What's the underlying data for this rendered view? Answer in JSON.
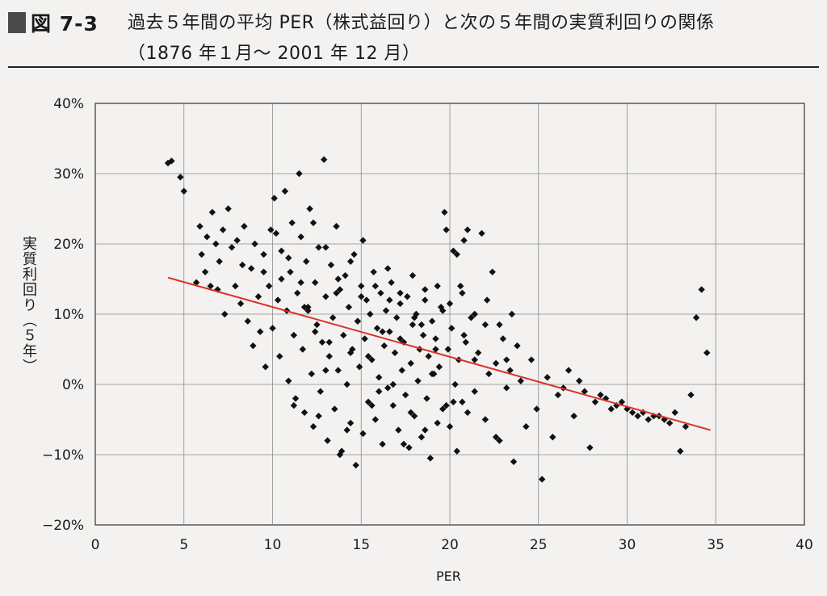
{
  "header": {
    "figure_label": "図 7-3",
    "title": "過去５年間の平均 PER（株式益回り）と次の５年間の実質利回りの関係",
    "subtitle": "（1876 年１月～ 2001 年 12 月）"
  },
  "colors": {
    "points": "#111111",
    "trend_line": "#d8322a",
    "grid": "#8a8a8a",
    "background": "#f4f2f0"
  },
  "chart_data": {
    "type": "scatter",
    "xlabel": "PER",
    "ylabel": "実質利回り（５年）",
    "xlim": [
      0,
      40
    ],
    "ylim": [
      -20,
      40
    ],
    "x_ticks": [
      0,
      5,
      10,
      15,
      20,
      25,
      30,
      35,
      40
    ],
    "y_ticks": [
      40,
      30,
      20,
      10,
      0,
      -10,
      -20
    ],
    "y_tick_labels": [
      "40%",
      "30%",
      "20%",
      "10%",
      "0%",
      "−10%",
      "−20%"
    ],
    "grid": true,
    "trend_line": {
      "x": [
        4.1,
        34.7
      ],
      "y": [
        15.2,
        -6.5
      ]
    },
    "points_x": [
      4.1,
      4.3,
      4.8,
      5.0,
      5.7,
      5.9,
      6.0,
      6.2,
      6.3,
      6.5,
      6.6,
      6.8,
      6.9,
      7.0,
      7.2,
      7.3,
      7.5,
      7.7,
      7.9,
      8.0,
      8.2,
      8.3,
      8.4,
      8.6,
      8.8,
      8.9,
      9.0,
      9.2,
      9.3,
      9.5,
      9.6,
      9.8,
      9.9,
      10.0,
      10.1,
      10.3,
      10.4,
      10.5,
      10.7,
      10.8,
      10.9,
      11.0,
      11.1,
      11.2,
      11.3,
      11.4,
      11.5,
      11.6,
      11.7,
      11.8,
      11.9,
      12.0,
      12.1,
      12.2,
      12.3,
      12.4,
      12.5,
      12.6,
      12.7,
      12.8,
      12.9,
      13.0,
      13.1,
      13.2,
      13.3,
      13.4,
      13.5,
      13.6,
      13.7,
      13.8,
      13.9,
      14.0,
      14.1,
      14.2,
      14.3,
      14.4,
      14.5,
      14.6,
      14.7,
      14.8,
      14.9,
      15.0,
      15.1,
      15.2,
      15.3,
      15.4,
      15.5,
      15.6,
      15.7,
      15.8,
      15.9,
      16.0,
      16.1,
      16.2,
      16.3,
      16.4,
      16.5,
      16.6,
      16.7,
      16.8,
      16.9,
      17.0,
      17.1,
      17.2,
      17.3,
      17.4,
      17.5,
      17.6,
      17.7,
      17.8,
      17.9,
      18.0,
      18.1,
      18.2,
      18.3,
      18.4,
      18.5,
      18.6,
      18.7,
      18.8,
      18.9,
      19.0,
      19.1,
      19.2,
      19.3,
      19.4,
      19.5,
      19.6,
      19.7,
      19.8,
      19.9,
      20.0,
      20.1,
      20.2,
      20.3,
      20.4,
      20.5,
      20.6,
      20.7,
      20.8,
      20.9,
      21.0,
      21.2,
      21.4,
      21.6,
      21.8,
      22.0,
      22.2,
      22.4,
      22.6,
      22.8,
      23.0,
      23.2,
      23.4,
      23.6,
      23.8,
      24.0,
      24.3,
      24.6,
      24.9,
      25.2,
      25.5,
      25.8,
      26.1,
      26.4,
      26.7,
      27.0,
      27.3,
      27.6,
      27.9,
      28.2,
      28.5,
      28.8,
      29.1,
      29.4,
      29.7,
      30.0,
      30.3,
      30.6,
      30.9,
      31.2,
      31.5,
      31.8,
      32.1,
      32.4,
      32.7,
      33.0,
      33.3,
      33.6,
      33.9,
      34.2,
      34.5,
      10.5,
      11.2,
      11.8,
      12.4,
      13.0,
      13.6,
      14.2,
      14.8,
      15.4,
      16.0,
      16.6,
      17.2,
      17.8,
      18.4,
      19.0,
      19.6,
      20.2,
      20.8,
      21.4,
      22.0,
      22.6,
      23.2,
      12.0,
      12.6,
      13.2,
      13.8,
      14.4,
      15.0,
      15.6,
      16.2,
      16.8,
      17.4,
      18.0,
      18.6,
      19.2,
      19.8,
      20.4,
      21.0,
      9.5,
      10.2,
      10.9,
      11.6,
      12.3,
      13.0,
      13.7,
      14.4,
      15.1,
      15.8,
      16.5,
      17.2,
      17.9,
      18.6,
      19.3,
      20.0,
      20.7,
      21.4,
      22.1,
      22.8,
      23.5,
      24.2,
      24.9
    ],
    "points_y": [
      31.5,
      31.8,
      29.5,
      27.5,
      14.5,
      22.5,
      18.5,
      16.0,
      21.0,
      14.0,
      24.5,
      20.0,
      13.5,
      17.5,
      22.0,
      10.0,
      25.0,
      19.5,
      14.0,
      20.5,
      11.5,
      17.0,
      22.5,
      9.0,
      16.5,
      5.5,
      20.0,
      12.5,
      7.5,
      18.5,
      2.5,
      14.0,
      22.0,
      8.0,
      26.5,
      12.0,
      4.0,
      19.0,
      27.5,
      10.5,
      0.5,
      16.0,
      23.0,
      7.0,
      -2.0,
      13.0,
      30.0,
      21.0,
      5.0,
      -4.0,
      17.5,
      11.0,
      25.0,
      1.5,
      -6.0,
      14.5,
      8.5,
      19.5,
      -1.0,
      6.0,
      32.0,
      12.5,
      -8.0,
      4.0,
      17.0,
      9.5,
      -3.5,
      22.5,
      2.0,
      13.5,
      -9.5,
      7.0,
      15.5,
      0.0,
      11.0,
      -5.5,
      5.0,
      18.5,
      -11.5,
      9.0,
      2.5,
      14.0,
      -7.0,
      6.5,
      12.0,
      -2.5,
      10.0,
      3.5,
      16.0,
      -5.0,
      8.0,
      1.0,
      13.0,
      -8.5,
      5.5,
      10.5,
      -0.5,
      7.5,
      14.5,
      -3.0,
      4.5,
      9.5,
      -6.5,
      11.5,
      2.0,
      6.0,
      -1.5,
      12.5,
      -9.0,
      3.0,
      8.5,
      -4.5,
      10.0,
      0.5,
      5.0,
      -7.5,
      7.0,
      13.5,
      -2.0,
      4.0,
      -10.5,
      9.0,
      1.5,
      6.5,
      -5.5,
      2.5,
      11.0,
      -3.5,
      24.5,
      22.0,
      5.0,
      -6.0,
      8.0,
      19.0,
      0.0,
      -9.5,
      3.5,
      14.0,
      -2.5,
      20.5,
      6.0,
      -4.0,
      9.5,
      -1.0,
      4.5,
      21.5,
      -5.0,
      1.5,
      16.0,
      3.0,
      -8.0,
      6.5,
      -0.5,
      2.0,
      -11.0,
      5.5,
      0.5,
      -6.0,
      3.5,
      -3.5,
      -13.5,
      1.0,
      -7.5,
      -1.5,
      -0.5,
      2.0,
      -4.5,
      0.5,
      -1.0,
      -9.0,
      -2.5,
      -1.5,
      -2.0,
      -3.5,
      -3.0,
      -2.5,
      -3.5,
      -4.0,
      -4.5,
      -4.0,
      -5.0,
      -4.5,
      -4.5,
      -5.0,
      -5.5,
      -4.0,
      -9.5,
      -6.0,
      -1.5,
      9.5,
      13.5,
      4.5,
      15.0,
      -3.0,
      11.0,
      7.5,
      2.0,
      13.0,
      -6.5,
      9.0,
      4.0,
      -1.0,
      12.0,
      6.5,
      -4.0,
      8.5,
      1.5,
      10.5,
      -2.5,
      7.0,
      3.5,
      8.5,
      -7.5,
      3.5,
      10.5,
      -4.5,
      6.0,
      -10.0,
      4.5,
      12.5,
      -3.0,
      7.5,
      0.0,
      -8.5,
      9.5,
      -6.5,
      5.0,
      -3.0,
      18.5,
      22.0,
      16.0,
      21.5,
      18.0,
      14.5,
      23.0,
      19.5,
      15.0,
      17.5,
      20.5,
      14.0,
      16.5,
      13.0,
      15.5,
      12.0,
      14.0,
      11.5,
      13.0,
      10.0,
      12.0,
      8.5,
      10.0
    ]
  }
}
